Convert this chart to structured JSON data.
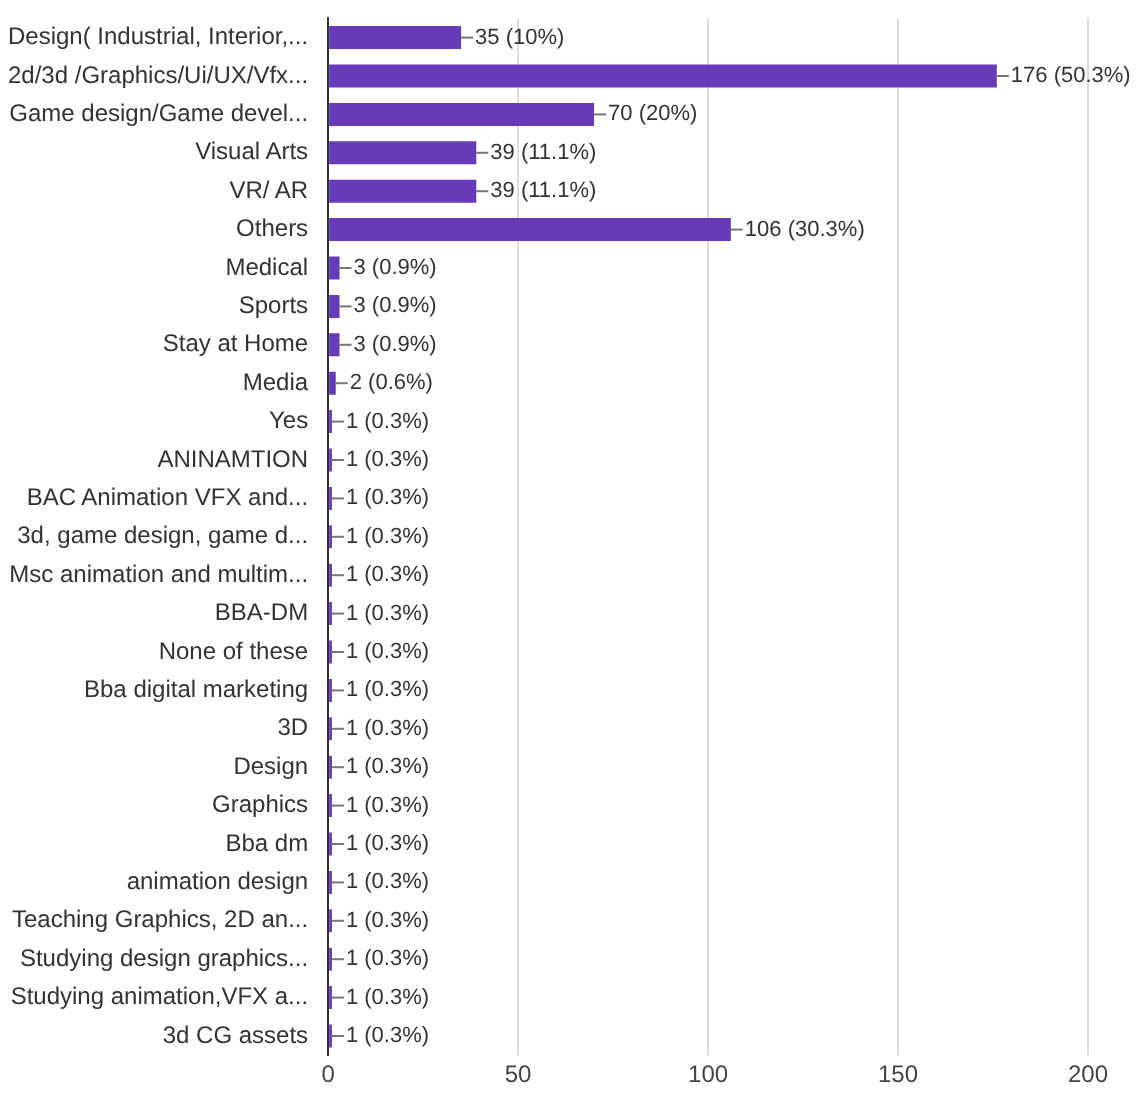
{
  "chart_data": {
    "type": "bar",
    "orientation": "horizontal",
    "categories": [
      "Design( Industrial, Interior,...",
      "2d/3d /Graphics/Ui/UX/Vfx...",
      "Game design/Game devel...",
      "Visual Arts",
      "VR/ AR",
      "Others",
      "Medical",
      "Sports",
      "Stay at Home",
      "Media",
      "Yes",
      "ANINAMTION",
      "BAC Animation VFX and...",
      "3d, game design, game d...",
      "Msc animation and multim...",
      "BBA-DM",
      "None of these",
      "Bba digital marketing",
      "3D",
      "Design",
      "Graphics",
      "Bba dm",
      "animation design",
      "Teaching Graphics, 2D an...",
      "Studying design graphics...",
      "Studying animation,VFX a...",
      "3d CG assets"
    ],
    "values": [
      35,
      176,
      70,
      39,
      39,
      106,
      3,
      3,
      3,
      2,
      1,
      1,
      1,
      1,
      1,
      1,
      1,
      1,
      1,
      1,
      1,
      1,
      1,
      1,
      1,
      1,
      1
    ],
    "value_labels": [
      "35 (10%)",
      "176 (50.3%)",
      "70 (20%)",
      "39 (11.1%)",
      "39 (11.1%)",
      "106 (30.3%)",
      "3 (0.9%)",
      "3 (0.9%)",
      "3 (0.9%)",
      "2 (0.6%)",
      "1 (0.3%)",
      "1 (0.3%)",
      "1 (0.3%)",
      "1 (0.3%)",
      "1 (0.3%)",
      "1 (0.3%)",
      "1 (0.3%)",
      "1 (0.3%)",
      "1 (0.3%)",
      "1 (0.3%)",
      "1 (0.3%)",
      "1 (0.3%)",
      "1 (0.3%)",
      "1 (0.3%)",
      "1 (0.3%)",
      "1 (0.3%)",
      "1 (0.3%)"
    ],
    "color": "#673ab7",
    "xlim": [
      0,
      200
    ],
    "xticks": [
      0,
      50,
      100,
      150,
      200
    ],
    "grid": "x"
  }
}
